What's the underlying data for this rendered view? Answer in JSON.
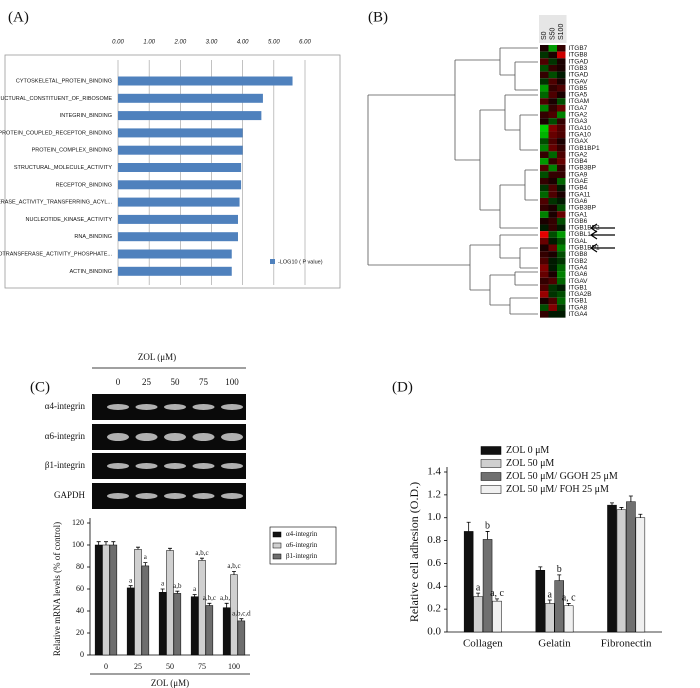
{
  "chart_data": [
    {
      "type": "barh",
      "panel": "(A)",
      "categories": [
        "CYTOSKELETAL_PROTEIN_BINDING",
        "STRUCTURAL_CONSTITUENT_OF_RIBOSOME",
        "INTEGRIN_BINDING",
        "G_PROTEIN_COUPLED_RECEPTOR_BINDING",
        "PROTEIN_COMPLEX_BINDING",
        "STRUCTURAL_MOLECULE_ACTIVITY",
        "RECEPTOR_BINDING",
        "TRANSFERASE_ACTIVITY_TRANSFERRING_ACYL...",
        "NUCLEOTIDE_KINASE_ACTIVITY",
        "RNA_BINDING",
        "PHOSPHOTRANSFERASE_ACTIVITY_PHOSPHATE...",
        "ACTIN_BINDING"
      ],
      "values": [
        5.6,
        4.65,
        4.6,
        4.0,
        4.0,
        3.95,
        3.95,
        3.9,
        3.85,
        3.85,
        3.65,
        3.65
      ],
      "color": "#4f81bd",
      "series_name": "-LOG10 ( P value)",
      "xlim": [
        0,
        6
      ],
      "xticks": [
        {
          "value": 0,
          "label": "0.00"
        },
        {
          "value": 1,
          "label": "1.00"
        },
        {
          "value": 2,
          "label": "2.00"
        },
        {
          "value": 3,
          "label": "3.00"
        },
        {
          "value": 4,
          "label": "4.00"
        },
        {
          "value": 5,
          "label": "5.00"
        },
        {
          "value": 6,
          "label": "6.00"
        }
      ],
      "grid": true
    },
    {
      "type": "heatmap",
      "panel": "(B)",
      "columns": [
        "S0",
        "S50",
        "S100"
      ],
      "rows": [
        "ITGB7",
        "ITGB8",
        "ITGAD",
        "ITGB3",
        "ITGAD",
        "ITGAV",
        "ITGB5",
        "ITGA5",
        "ITGAM",
        "ITGA7",
        "ITGA2",
        "ITGA3",
        "ITGA10",
        "ITGA10",
        "ITGAX",
        "ITGB1BP1",
        "ITGA2",
        "ITGB4",
        "ITGB3BP",
        "ITGA9",
        "ITGAE",
        "ITGB4",
        "ITGA11",
        "ITGA6",
        "ITGB3BP",
        "ITGA1",
        "ITGB6",
        "ITGB1BP2",
        "ITGBL1",
        "ITGAL",
        "ITGB1BP1",
        "ITGB8",
        "ITGB2",
        "ITGA4",
        "ITGA6",
        "ITGAV",
        "ITGB1",
        "ITGA2B",
        "ITGB1",
        "ITGA8",
        "ITGA4"
      ],
      "values": [
        [
          0.1,
          -0.6,
          0.2
        ],
        [
          -0.2,
          0.1,
          0.8
        ],
        [
          0.3,
          -0.2,
          0.1
        ],
        [
          -0.3,
          0.2,
          0.1
        ],
        [
          0.2,
          -0.3,
          -0.1
        ],
        [
          -0.2,
          0.3,
          0.1
        ],
        [
          -0.6,
          0.2,
          0.3
        ],
        [
          -0.4,
          0.3,
          0.1
        ],
        [
          0.3,
          0.1,
          -0.3
        ],
        [
          -0.5,
          0.2,
          0.4
        ],
        [
          0.2,
          0.3,
          -0.5
        ],
        [
          0.1,
          -0.3,
          0.2
        ],
        [
          -0.8,
          0.5,
          0.3
        ],
        [
          -0.7,
          0.4,
          0.3
        ],
        [
          -0.3,
          0.3,
          0.1
        ],
        [
          -0.5,
          0.4,
          0.2
        ],
        [
          0.2,
          -0.4,
          0.3
        ],
        [
          -0.6,
          0.2,
          0.4
        ],
        [
          0.3,
          -0.5,
          0.2
        ],
        [
          -0.3,
          0.2,
          0.2
        ],
        [
          0.2,
          0.1,
          -0.4
        ],
        [
          -0.2,
          0.3,
          -0.1
        ],
        [
          -0.4,
          0.3,
          0.1
        ],
        [
          0.3,
          -0.2,
          -0.1
        ],
        [
          0.2,
          0.1,
          -0.3
        ],
        [
          -0.5,
          0.1,
          0.4
        ],
        [
          0.1,
          0.2,
          -0.3
        ],
        [
          -0.1,
          0.2,
          -0.1
        ],
        [
          0.9,
          -0.3,
          -0.6
        ],
        [
          0.4,
          -0.1,
          -0.3
        ],
        [
          0.1,
          0.4,
          -0.5
        ],
        [
          0.2,
          0.1,
          -0.3
        ],
        [
          0.3,
          -0.1,
          -0.2
        ],
        [
          0.5,
          -0.1,
          -0.4
        ],
        [
          0.4,
          0.1,
          -0.5
        ],
        [
          0.2,
          0.3,
          -0.4
        ],
        [
          0.3,
          -0.2,
          -0.1
        ],
        [
          0.6,
          -0.2,
          -0.3
        ],
        [
          0.1,
          0.3,
          -0.4
        ],
        [
          -0.3,
          0.5,
          -0.2
        ],
        [
          0.2,
          -0.1,
          -0.1
        ]
      ]
    },
    {
      "type": "grouped_bar",
      "panel": "(C)",
      "gel": {
        "title": "ZOL (μM)",
        "lanes": [
          "0",
          "25",
          "50",
          "75",
          "100"
        ],
        "rows": [
          "α4-integrin",
          "α6-integrin",
          "β1-integrin",
          "GAPDH"
        ]
      },
      "xlabel": "ZOL (μM)",
      "ylabel": "Relative mRNA levels (% of control)",
      "categories": [
        "0",
        "25",
        "50",
        "75",
        "100"
      ],
      "ylim": [
        0,
        120
      ],
      "yticks": [
        0,
        20,
        40,
        60,
        80,
        100,
        120
      ],
      "series": [
        {
          "name": "α4-integrin",
          "color": "#111111",
          "values": [
            100,
            61,
            57,
            53,
            43
          ],
          "errors": [
            3,
            2,
            3,
            2,
            4
          ],
          "annotations": [
            null,
            "a",
            "a",
            "a",
            "a,b,c"
          ]
        },
        {
          "name": "α6-integrin",
          "color": "#d0d0d0",
          "values": [
            100,
            96,
            95,
            86,
            73
          ],
          "errors": [
            3,
            2,
            2,
            2,
            3
          ],
          "annotations": [
            null,
            null,
            null,
            "a,b,c",
            "a,b,c"
          ]
        },
        {
          "name": "β1-integrin",
          "color": "#6e6e6e",
          "values": [
            100,
            81,
            56,
            45,
            31
          ],
          "errors": [
            3,
            3,
            2,
            2,
            2
          ],
          "annotations": [
            null,
            "a",
            "a,b",
            "a,b,c",
            "a,b,c,d"
          ]
        }
      ]
    },
    {
      "type": "grouped_bar",
      "panel": "(D)",
      "ylabel": "Relative cell adhesion (O.D.)",
      "categories": [
        "Collagen",
        "Gelatin",
        "Fibronectin"
      ],
      "ylim": [
        0,
        1.4
      ],
      "yticks": [
        {
          "value": 0,
          "label": "0.0"
        },
        {
          "value": 0.2,
          "label": "0.2"
        },
        {
          "value": 0.4,
          "label": "0.4"
        },
        {
          "value": 0.6,
          "label": "0.6"
        },
        {
          "value": 0.8,
          "label": "0.8"
        },
        {
          "value": 1.0,
          "label": "1.0"
        },
        {
          "value": 1.2,
          "label": "1.2"
        },
        {
          "value": 1.4,
          "label": "1.4"
        }
      ],
      "series": [
        {
          "name": "ZOL 0 μM",
          "color": "#111111",
          "values": [
            0.88,
            0.54,
            1.11
          ],
          "errors": [
            0.08,
            0.03,
            0.02
          ],
          "annotations": [
            null,
            null,
            null
          ]
        },
        {
          "name": "ZOL 50 μM",
          "color": "#cfcfcf",
          "values": [
            0.31,
            0.25,
            1.07
          ],
          "errors": [
            0.03,
            0.03,
            0.02
          ],
          "annotations": [
            "a",
            "a",
            null
          ]
        },
        {
          "name": "ZOL 50 μM/ GGOH 25 μM",
          "color": "#707070",
          "values": [
            0.81,
            0.45,
            1.14
          ],
          "errors": [
            0.07,
            0.05,
            0.05
          ],
          "annotations": [
            "b",
            "b",
            null
          ]
        },
        {
          "name": "ZOL 50 μM/ FOH 25 μM",
          "color": "#f0f0f0",
          "values": [
            0.27,
            0.23,
            1.0
          ],
          "errors": [
            0.02,
            0.02,
            0.03
          ],
          "annotations": [
            "a, c",
            "a, c",
            null
          ]
        }
      ]
    }
  ]
}
